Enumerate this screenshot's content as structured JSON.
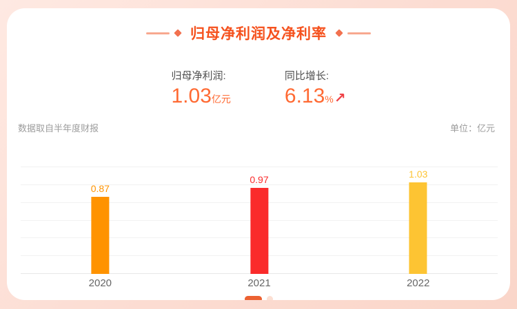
{
  "card": {
    "title": "归母净利润及净利率",
    "stats": {
      "profit": {
        "label": "归母净利润:",
        "value": "1.03",
        "unit": "亿元"
      },
      "growth": {
        "label": "同比增长:",
        "value": "6.13",
        "unit": "%",
        "arrow": "↗"
      }
    },
    "source_note": "数据取自半年度财报",
    "unit_note": "单位：亿元"
  },
  "chart_data": {
    "type": "bar",
    "categories": [
      "2020",
      "2021",
      "2022"
    ],
    "values": [
      0.87,
      0.97,
      1.03
    ],
    "bar_colors": [
      "#FF9300",
      "#FA2B2B",
      "#FDC433"
    ],
    "title": "归母净利润及净利率",
    "xlabel": "",
    "ylabel": "亿元",
    "ylim": [
      0,
      1.2
    ],
    "grid_step": 0.2,
    "grid": true,
    "value_labels": true,
    "legend": "none"
  },
  "pagination": {
    "total": 2,
    "active": 0
  },
  "colors": {
    "accent": "#F5511D",
    "stat_value": "#FF6A33",
    "arrow": "#EF4146",
    "background_frame": "#FBD7CB",
    "active_dot": "#EC6132",
    "inactive_dot": "#FCDFD3"
  }
}
